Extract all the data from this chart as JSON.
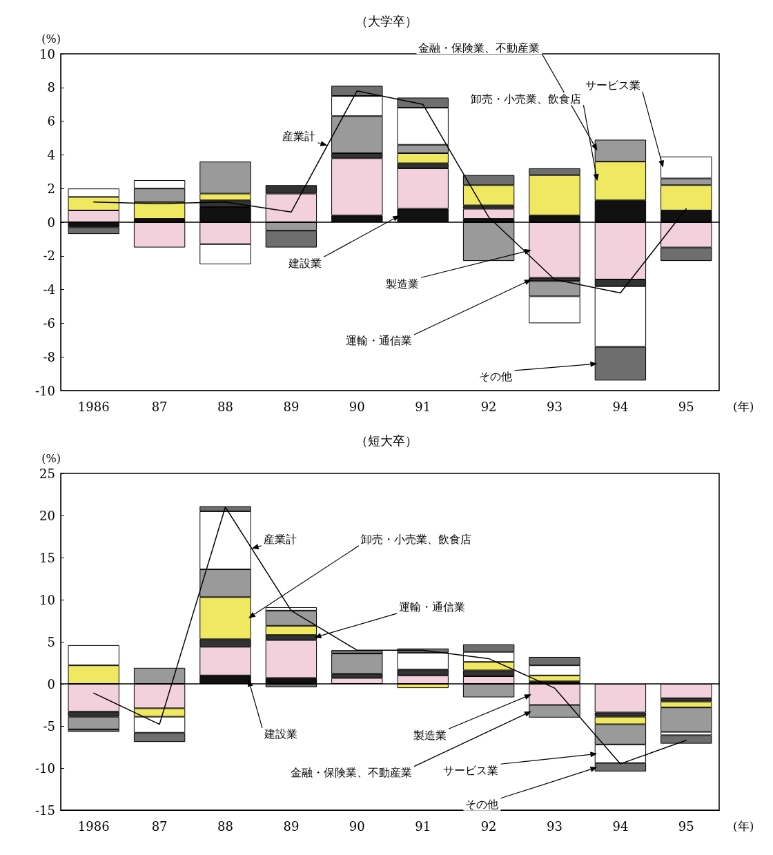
{
  "chart_data": [
    {
      "type": "bar",
      "title": "（大学卒）",
      "ylabel": "(%)",
      "xlabel": "(年)",
      "stacked": true,
      "categories": [
        "1986",
        "87",
        "88",
        "89",
        "90",
        "91",
        "92",
        "93",
        "94",
        "95"
      ],
      "ylim": [
        -10,
        10
      ],
      "yticks": [
        -10,
        -8,
        -6,
        -4,
        -2,
        0,
        2,
        4,
        6,
        8,
        10
      ],
      "series": [
        {
          "name": "建設業",
          "color": "#111111",
          "values": [
            -0.3,
            0.2,
            0.9,
            null,
            0.4,
            0.8,
            0.2,
            0.4,
            1.3,
            0.7
          ]
        },
        {
          "name": "製造業",
          "color": "#f2d0dc",
          "values": [
            0.7,
            -1.5,
            -1.3,
            1.7,
            3.4,
            2.4,
            0.6,
            -3.3,
            -3.4,
            -1.5
          ]
        },
        {
          "name": "運輸・通信業",
          "color": "#333333",
          "values": [
            null,
            null,
            0.4,
            0.5,
            0.3,
            0.3,
            0.2,
            -0.2,
            -0.4,
            null
          ]
        },
        {
          "name": "卸売・小売業、飲食店",
          "color": "#f0e860",
          "values": [
            0.8,
            1.0,
            0.4,
            null,
            null,
            0.6,
            1.2,
            2.4,
            2.3,
            1.5
          ]
        },
        {
          "name": "金融・保険業、不動産業",
          "color": "#9a9a9a",
          "values": [
            null,
            0.8,
            1.9,
            -0.5,
            2.2,
            0.5,
            -2.3,
            -0.9,
            1.3,
            0.4
          ]
        },
        {
          "name": "サービス業",
          "color": "#ffffff",
          "values": [
            0.5,
            0.5,
            -1.2,
            null,
            1.2,
            2.2,
            null,
            -1.6,
            -3.6,
            1.3
          ]
        },
        {
          "name": "その他",
          "color": "#6e6e6e",
          "values": [
            -0.4,
            null,
            null,
            -1.0,
            0.6,
            0.6,
            0.6,
            0.4,
            -2.0,
            -0.8
          ]
        },
        {
          "name": "産業計",
          "type": "line",
          "color": "#000000",
          "values": [
            1.2,
            1.1,
            1.2,
            0.6,
            7.8,
            7.0,
            0.3,
            -3.4,
            -4.2,
            0.8
          ]
        }
      ]
    },
    {
      "type": "bar",
      "title": "（短大卒）",
      "ylabel": "(%)",
      "xlabel": "(年)",
      "stacked": true,
      "categories": [
        "1986",
        "87",
        "88",
        "89",
        "90",
        "91",
        "92",
        "93",
        "94",
        "95"
      ],
      "ylim": [
        -15,
        25
      ],
      "yticks": [
        -15,
        -10,
        -5,
        0,
        5,
        10,
        15,
        20,
        25
      ],
      "series": [
        {
          "name": "建設業",
          "color": "#111111",
          "values": [
            null,
            null,
            1.0,
            0.7,
            null,
            null,
            null,
            0.3,
            null,
            null
          ]
        },
        {
          "name": "製造業",
          "color": "#f2d0dc",
          "values": [
            -3.3,
            -2.9,
            3.4,
            4.5,
            0.7,
            1.0,
            0.9,
            -2.5,
            -3.4,
            -1.7
          ]
        },
        {
          "name": "運輸・通信業",
          "color": "#333333",
          "values": [
            -0.6,
            null,
            0.9,
            0.6,
            0.5,
            0.7,
            0.7,
            null,
            -0.5,
            -0.4
          ]
        },
        {
          "name": "卸売・小売業、飲食店",
          "color": "#f0e860",
          "values": [
            2.2,
            -1.0,
            5.0,
            1.1,
            null,
            -0.5,
            1.0,
            0.7,
            -0.9,
            -0.7
          ]
        },
        {
          "name": "金融・保険業、不動産業",
          "color": "#9a9a9a",
          "values": [
            -1.5,
            1.9,
            3.3,
            1.8,
            2.4,
            null,
            -1.6,
            -1.5,
            -2.4,
            -2.9
          ]
        },
        {
          "name": "サービス業",
          "color": "#ffffff",
          "values": [
            2.4,
            -1.9,
            6.9,
            0.4,
            null,
            2.0,
            1.2,
            1.2,
            -2.2,
            -0.4
          ]
        },
        {
          "name": "その他",
          "color": "#6e6e6e",
          "values": [
            -0.3,
            -1.1,
            0.6,
            -0.4,
            0.4,
            0.5,
            0.9,
            1.0,
            -1.0,
            -1.0
          ]
        },
        {
          "name": "産業計",
          "type": "line",
          "color": "#000000",
          "values": [
            -1.1,
            -4.8,
            21.0,
            8.7,
            4.0,
            4.0,
            3.0,
            -0.5,
            -9.5,
            -6.7
          ]
        }
      ]
    }
  ]
}
